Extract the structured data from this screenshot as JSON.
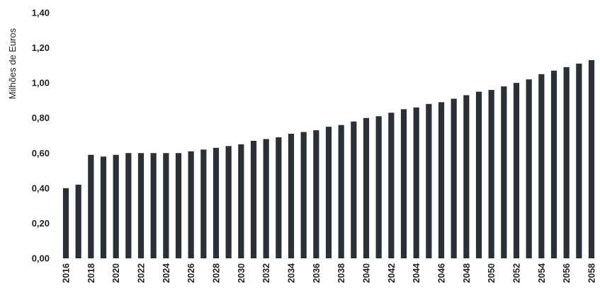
{
  "chart_data": {
    "type": "bar",
    "title": "",
    "xlabel": "",
    "ylabel": "Milhões de Euros",
    "ylim": [
      0,
      1.4
    ],
    "yticks": [
      "0,00",
      "0,20",
      "0,40",
      "0,60",
      "0,80",
      "1,00",
      "1,20",
      "1,40"
    ],
    "grid": false,
    "bar_color": "#2b2f36",
    "categories": [
      "2016",
      "2017",
      "2018",
      "2019",
      "2020",
      "2021",
      "2022",
      "2023",
      "2024",
      "2025",
      "2026",
      "2027",
      "2028",
      "2029",
      "2030",
      "2031",
      "2032",
      "2033",
      "2034",
      "2035",
      "2036",
      "2037",
      "2038",
      "2039",
      "2040",
      "2041",
      "2042",
      "2043",
      "2044",
      "2045",
      "2046",
      "2047",
      "2048",
      "2049",
      "2050",
      "2051",
      "2052",
      "2053",
      "2054",
      "2055",
      "2056",
      "2057",
      "2058"
    ],
    "xtick_labels": [
      "2016",
      "2018",
      "2020",
      "2022",
      "2024",
      "2026",
      "2028",
      "2030",
      "2032",
      "2034",
      "2036",
      "2038",
      "2040",
      "2042",
      "2044",
      "2046",
      "2048",
      "2050",
      "2052",
      "2054",
      "2056",
      "2058"
    ],
    "values": [
      0.4,
      0.42,
      0.59,
      0.58,
      0.59,
      0.6,
      0.6,
      0.6,
      0.6,
      0.6,
      0.61,
      0.62,
      0.63,
      0.64,
      0.65,
      0.67,
      0.68,
      0.69,
      0.71,
      0.72,
      0.73,
      0.75,
      0.76,
      0.78,
      0.8,
      0.81,
      0.83,
      0.85,
      0.86,
      0.88,
      0.89,
      0.91,
      0.93,
      0.95,
      0.96,
      0.98,
      1.0,
      1.02,
      1.05,
      1.07,
      1.09,
      1.11,
      1.13
    ]
  }
}
